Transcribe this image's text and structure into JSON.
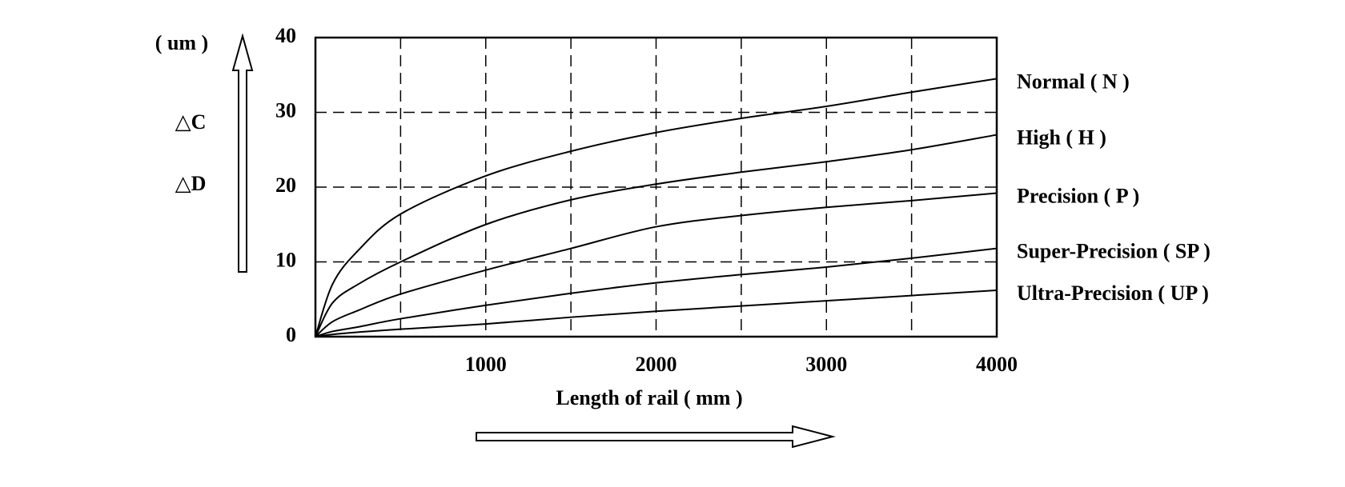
{
  "chart_data": {
    "type": "line",
    "x_label": "Length of rail ( mm )",
    "y_unit": "( um )",
    "y_labels": [
      "△C",
      "△D"
    ],
    "x": [
      0,
      100,
      250,
      500,
      1000,
      1500,
      2000,
      2500,
      3000,
      3500,
      4000
    ],
    "series": [
      {
        "name": "Normal ( N )",
        "color": "#000000",
        "values": [
          0,
          7,
          11.5,
          16.4,
          21.5,
          24.8,
          27.3,
          29.2,
          30.8,
          32.7,
          34.5
        ]
      },
      {
        "name": "High ( H )",
        "color": "#000000",
        "values": [
          0,
          4.5,
          7,
          10,
          15,
          18.3,
          20.4,
          22,
          23.4,
          25,
          27
        ]
      },
      {
        "name": "Precision ( P )",
        "color": "#000000",
        "values": [
          0,
          2,
          3.5,
          5.7,
          8.9,
          11.8,
          14.7,
          16.2,
          17.3,
          18.2,
          19.2
        ]
      },
      {
        "name": "Super-Precision ( SP )",
        "color": "#000000",
        "values": [
          0,
          0.7,
          1.3,
          2.4,
          4.2,
          5.8,
          7.2,
          8.3,
          9.3,
          10.5,
          11.8
        ]
      },
      {
        "name": "Ultra-Precision ( UP )",
        "color": "#000000",
        "values": [
          0,
          0.3,
          0.6,
          1.0,
          1.7,
          2.6,
          3.4,
          4.1,
          4.8,
          5.5,
          6.2
        ]
      }
    ],
    "xlim": [
      0,
      4000
    ],
    "xticks": [
      1000,
      2000,
      3000,
      4000
    ],
    "xgrid": [
      500,
      1000,
      1500,
      2000,
      2500,
      3000,
      3500
    ],
    "ylim": [
      0,
      40
    ],
    "yticks": [
      0,
      10,
      20,
      30,
      40
    ],
    "ygrid": [
      10,
      20,
      30
    ],
    "grid": true
  }
}
